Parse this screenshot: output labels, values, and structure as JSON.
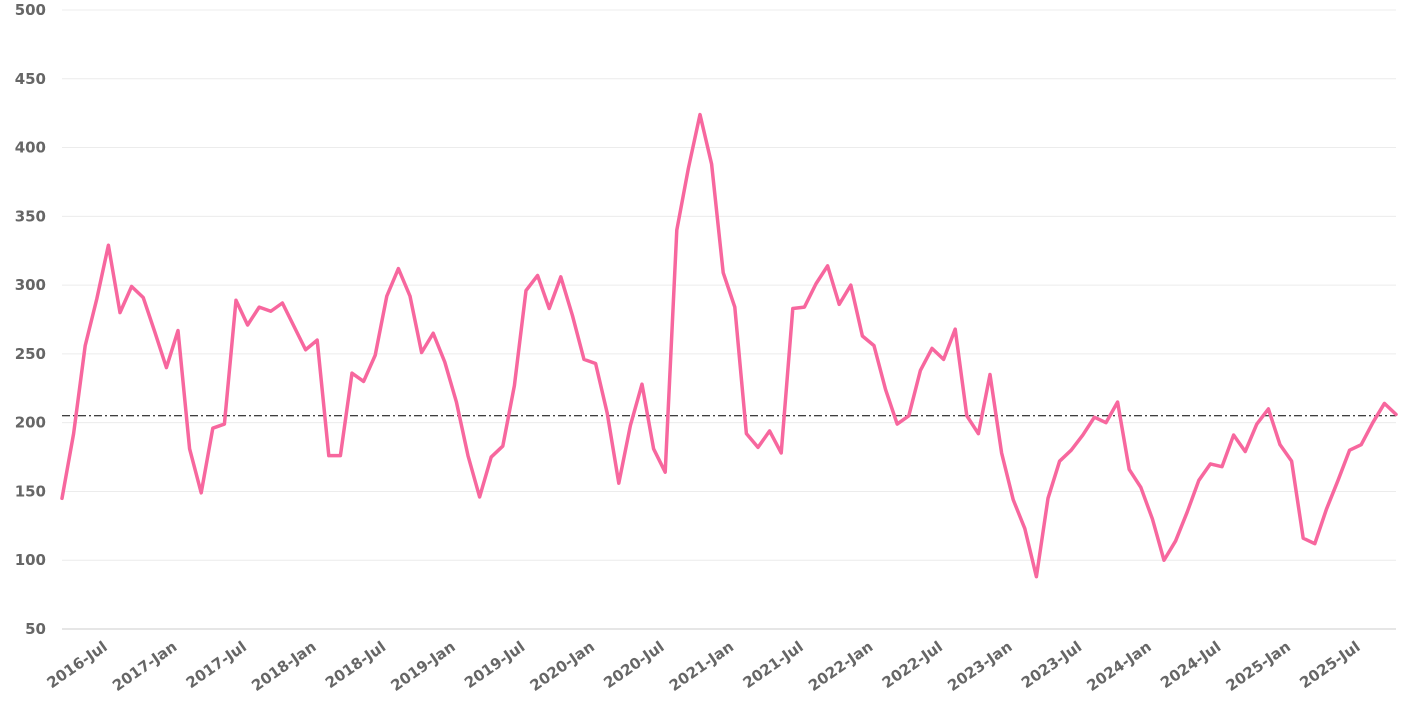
{
  "chart_data": {
    "type": "line",
    "ylim": [
      50,
      500
    ],
    "y_ticks": [
      "50",
      "100",
      "150",
      "200",
      "250",
      "300",
      "350",
      "400",
      "450",
      "500"
    ],
    "x_ticks": [
      {
        "label": "2016-Jul",
        "index": 4
      },
      {
        "label": "2017-Jan",
        "index": 10
      },
      {
        "label": "2017-Jul",
        "index": 16
      },
      {
        "label": "2018-Jan",
        "index": 22
      },
      {
        "label": "2018-Jul",
        "index": 28
      },
      {
        "label": "2019-Jan",
        "index": 34
      },
      {
        "label": "2019-Jul",
        "index": 40
      },
      {
        "label": "2020-Jan",
        "index": 46
      },
      {
        "label": "2020-Jul",
        "index": 52
      },
      {
        "label": "2021-Jan",
        "index": 58
      },
      {
        "label": "2021-Jul",
        "index": 64
      },
      {
        "label": "2022-Jan",
        "index": 70
      },
      {
        "label": "2022-Jul",
        "index": 76
      },
      {
        "label": "2023-Jan",
        "index": 82
      },
      {
        "label": "2023-Jul",
        "index": 88
      },
      {
        "label": "2024-Jan",
        "index": 94
      },
      {
        "label": "2024-Jul",
        "index": 100
      },
      {
        "label": "2025-Jan",
        "index": 106
      },
      {
        "label": "2025-Jul",
        "index": 112
      }
    ],
    "x_start": "2016-Mar",
    "x_end": "2025-Oct",
    "reference_line": 205,
    "grid": true,
    "series": [
      {
        "color": "#f7679e",
        "values": [
          145,
          192,
          256,
          290,
          329,
          280,
          299,
          291,
          266,
          240,
          267,
          181,
          149,
          196,
          199,
          289,
          271,
          284,
          281,
          287,
          270,
          253,
          260,
          176,
          176,
          236,
          230,
          249,
          292,
          312,
          292,
          251,
          265,
          244,
          215,
          176,
          146,
          175,
          183,
          227,
          296,
          307,
          283,
          306,
          278,
          246,
          243,
          207,
          156,
          198,
          228,
          181,
          164,
          340,
          385,
          424,
          388,
          309,
          284,
          192,
          182,
          194,
          178,
          283,
          284,
          301,
          314,
          286,
          300,
          263,
          256,
          224,
          199,
          205,
          238,
          254,
          246,
          268,
          205,
          192,
          235,
          178,
          144,
          123,
          88,
          145,
          172,
          180,
          191,
          204,
          200,
          215,
          166,
          153,
          130,
          100,
          114,
          135,
          158,
          170,
          168,
          191,
          179,
          199,
          210,
          184,
          172,
          116,
          112,
          137,
          158,
          180,
          184,
          200,
          214,
          206
        ]
      }
    ]
  }
}
